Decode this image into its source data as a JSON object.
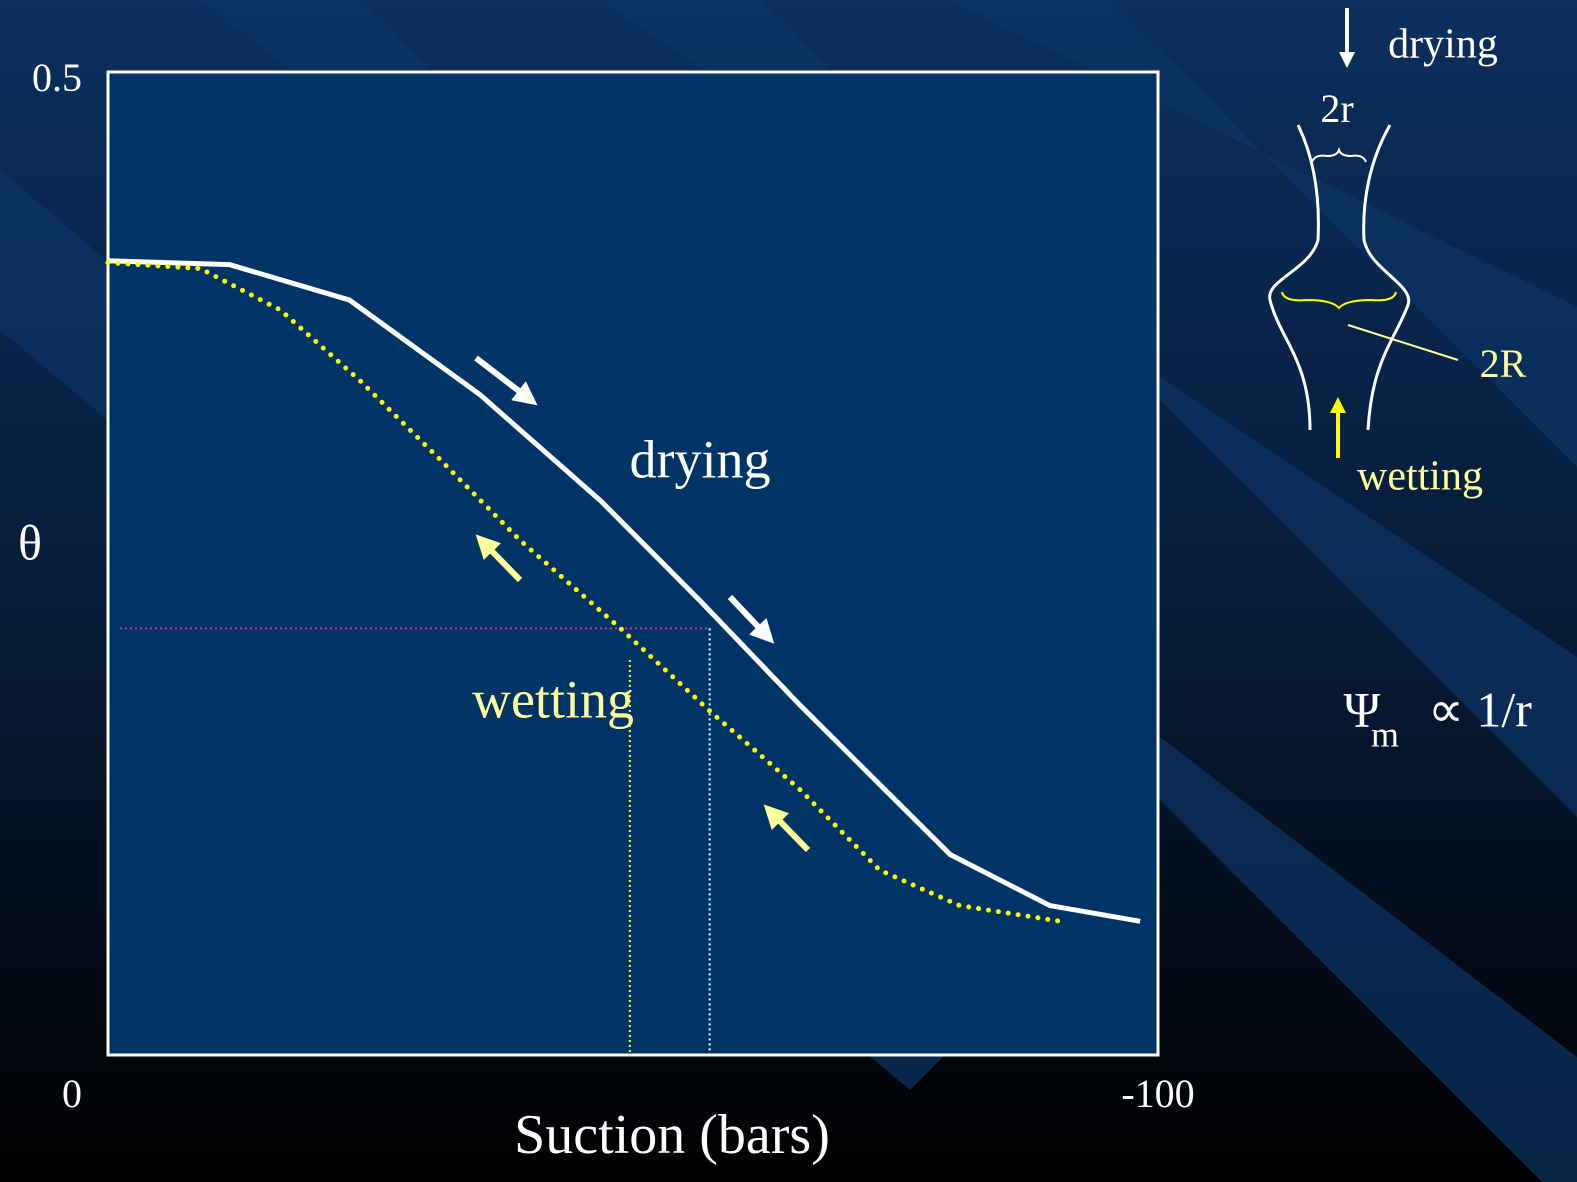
{
  "chart_data": {
    "type": "line",
    "x_label": "Suction (bars)",
    "y_label": "θ",
    "xlim": [
      0,
      -100
    ],
    "ylim": [
      0,
      0.5
    ],
    "xticks": [
      0,
      -100
    ],
    "yticks": [
      0.5
    ],
    "series": [
      {
        "name": "drying",
        "color": "#ffffff",
        "style": "solid",
        "x": [
          0,
          -11.6,
          -23.0,
          -35.4,
          -46.9,
          -56.4,
          -65.9,
          -80.2,
          -89.7,
          -98.3
        ],
        "values": [
          0.404,
          0.402,
          0.384,
          0.336,
          0.282,
          0.231,
          0.178,
          0.102,
          0.076,
          0.068
        ]
      },
      {
        "name": "wetting",
        "color": "#ffff00",
        "style": "dotted",
        "x": [
          0,
          -8.8,
          -16.4,
          -24.0,
          -31.6,
          -39.2,
          -48.8,
          -57.3,
          -65.9,
          -73.5,
          -81.1,
          -90.7
        ],
        "values": [
          0.403,
          0.4,
          0.379,
          0.343,
          0.303,
          0.262,
          0.217,
          0.175,
          0.135,
          0.094,
          0.076,
          0.068
        ]
      }
    ],
    "guides": {
      "theta": 0.217,
      "x_wetting": -49.7,
      "x_drying": -57.3
    }
  },
  "diagram": {
    "drying": "drying",
    "pore_neck": "2r",
    "pore_body": "2R",
    "wetting": "wetting",
    "formula": {
      "symbol": "Ψ",
      "subscript": "m",
      "rest": "∝ 1/r"
    }
  }
}
